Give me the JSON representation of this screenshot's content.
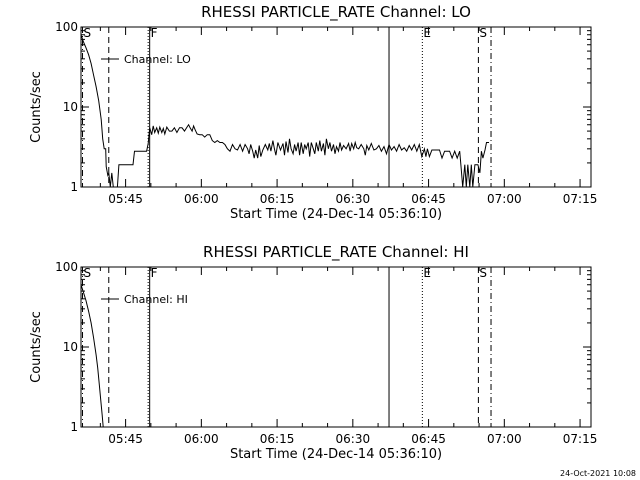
{
  "page": {
    "footer_date": "24-Oct-2021 10:08"
  },
  "chart_data": [
    {
      "type": "line",
      "title": "RHESSI PARTICLE_RATE Channel: LO",
      "xlabel": "Start Time (24-Dec-14 05:36:10)",
      "ylabel": "Counts/sec",
      "y_scale": "log",
      "ylim": [
        1,
        100
      ],
      "y_ticks": [
        {
          "value": 1,
          "label": "1"
        },
        {
          "value": 10,
          "label": "10"
        },
        {
          "value": 100,
          "label": "100"
        }
      ],
      "xlim_minutes": [
        0,
        101
      ],
      "x_ticks": [
        {
          "minute": 8.833,
          "label": "05:45"
        },
        {
          "minute": 23.833,
          "label": "06:00"
        },
        {
          "minute": 38.833,
          "label": "06:15"
        },
        {
          "minute": 53.833,
          "label": "06:30"
        },
        {
          "minute": 68.833,
          "label": "06:45"
        },
        {
          "minute": 83.833,
          "label": "07:00"
        },
        {
          "minute": 98.833,
          "label": "07:15"
        }
      ],
      "legend": {
        "label": "Channel: LO",
        "position": "top-left"
      },
      "markers": [
        {
          "letter": "S",
          "minute": 0.3,
          "style": "dash-dot"
        },
        {
          "letter": "",
          "minute": 5.5,
          "style": "dashed"
        },
        {
          "letter": "",
          "minute": 13.3,
          "style": "dotted"
        },
        {
          "letter": "F",
          "minute": 13.6,
          "style": "solid"
        },
        {
          "letter": "",
          "minute": 61.0,
          "style": "solid"
        },
        {
          "letter": "E",
          "minute": 67.6,
          "style": "dotted"
        },
        {
          "letter": "S",
          "minute": 78.7,
          "style": "dashed"
        },
        {
          "letter": "",
          "minute": 81.2,
          "style": "dash-dot"
        }
      ],
      "series": [
        {
          "name": "Channel: LO",
          "points": [
            [
              0.0,
              80
            ],
            [
              0.5,
              65
            ],
            [
              1.0,
              55
            ],
            [
              1.5,
              45
            ],
            [
              2.0,
              35
            ],
            [
              2.5,
              25
            ],
            [
              3.0,
              18
            ],
            [
              3.5,
              12
            ],
            [
              4.0,
              7
            ],
            [
              4.3,
              4
            ],
            [
              4.6,
              3
            ],
            [
              4.9,
              3
            ],
            [
              5.0,
              1.8
            ],
            [
              5.3,
              1.4
            ],
            [
              5.5,
              1.5
            ],
            [
              5.8,
              1.0
            ],
            [
              6.1,
              1.5
            ],
            [
              6.4,
              1.0
            ],
            [
              7.2,
              1.0
            ],
            [
              7.5,
              1.9
            ],
            [
              8.0,
              1.9
            ],
            [
              10.3,
              1.9
            ],
            [
              10.6,
              2.8
            ],
            [
              13.0,
              2.8
            ],
            [
              13.3,
              3.5
            ],
            [
              13.6,
              5.5
            ],
            [
              14.0,
              4.5
            ],
            [
              14.3,
              5.8
            ],
            [
              14.6,
              4.8
            ],
            [
              15.0,
              5.5
            ],
            [
              15.3,
              4.7
            ],
            [
              15.6,
              5.6
            ],
            [
              16.0,
              4.8
            ],
            [
              16.3,
              5.4
            ],
            [
              16.6,
              4.6
            ],
            [
              17.0,
              5.6
            ],
            [
              17.5,
              5.0
            ],
            [
              18.0,
              5.0
            ],
            [
              18.5,
              5.5
            ],
            [
              19.0,
              4.8
            ],
            [
              19.5,
              5.5
            ],
            [
              20.0,
              5.5
            ],
            [
              20.5,
              5.0
            ],
            [
              21.0,
              5.6
            ],
            [
              21.3,
              6.0
            ],
            [
              21.6,
              5.5
            ],
            [
              22.0,
              5.0
            ],
            [
              22.3,
              5.8
            ],
            [
              22.6,
              5.2
            ],
            [
              23.0,
              4.6
            ],
            [
              23.5,
              4.5
            ],
            [
              24.0,
              4.5
            ],
            [
              24.5,
              4.2
            ],
            [
              25.0,
              4.5
            ],
            [
              25.5,
              4.5
            ],
            [
              26.0,
              3.8
            ],
            [
              26.5,
              3.6
            ],
            [
              27.0,
              3.8
            ],
            [
              27.5,
              3.6
            ],
            [
              28.0,
              3.6
            ],
            [
              28.5,
              3.4
            ],
            [
              29.0,
              3.0
            ],
            [
              29.5,
              2.8
            ],
            [
              30.0,
              3.4
            ],
            [
              30.5,
              3.0
            ],
            [
              31.0,
              2.9
            ],
            [
              31.5,
              3.4
            ],
            [
              32.0,
              2.8
            ],
            [
              32.5,
              3.4
            ],
            [
              33.0,
              3.0
            ],
            [
              33.3,
              2.6
            ],
            [
              33.6,
              3.4
            ],
            [
              34.0,
              2.8
            ],
            [
              34.3,
              2.3
            ],
            [
              34.6,
              2.9
            ],
            [
              35.0,
              2.3
            ],
            [
              35.3,
              3.3
            ],
            [
              35.6,
              2.4
            ],
            [
              36.0,
              2.9
            ],
            [
              36.5,
              3.4
            ],
            [
              37.0,
              2.9
            ],
            [
              37.3,
              3.5
            ],
            [
              37.6,
              2.8
            ],
            [
              38.0,
              3.8
            ],
            [
              38.3,
              3.0
            ],
            [
              38.6,
              2.5
            ],
            [
              39.0,
              3.6
            ],
            [
              39.5,
              2.9
            ],
            [
              40.0,
              3.5
            ],
            [
              40.3,
              2.5
            ],
            [
              40.6,
              3.7
            ],
            [
              41.0,
              2.7
            ],
            [
              41.3,
              4.0
            ],
            [
              41.6,
              3.0
            ],
            [
              42.0,
              2.6
            ],
            [
              42.3,
              3.4
            ],
            [
              42.6,
              2.8
            ],
            [
              43.0,
              3.6
            ],
            [
              43.3,
              2.5
            ],
            [
              43.6,
              3.6
            ],
            [
              44.0,
              2.6
            ],
            [
              44.3,
              3.4
            ],
            [
              44.6,
              3.0
            ],
            [
              45.0,
              3.6
            ],
            [
              45.3,
              2.4
            ],
            [
              45.6,
              3.6
            ],
            [
              46.0,
              3.0
            ],
            [
              46.3,
              2.6
            ],
            [
              46.6,
              3.6
            ],
            [
              47.0,
              2.8
            ],
            [
              47.3,
              3.8
            ],
            [
              47.6,
              2.8
            ],
            [
              48.0,
              3.5
            ],
            [
              48.3,
              2.5
            ],
            [
              48.6,
              4.0
            ],
            [
              49.0,
              3.0
            ],
            [
              49.3,
              3.6
            ],
            [
              49.6,
              2.8
            ],
            [
              50.0,
              3.4
            ],
            [
              50.3,
              2.6
            ],
            [
              50.6,
              3.2
            ],
            [
              51.0,
              2.8
            ],
            [
              51.3,
              3.6
            ],
            [
              51.6,
              2.9
            ],
            [
              52.0,
              3.3
            ],
            [
              52.5,
              3.0
            ],
            [
              53.0,
              3.5
            ],
            [
              53.3,
              2.8
            ],
            [
              53.6,
              3.5
            ],
            [
              54.0,
              3.0
            ],
            [
              54.3,
              3.6
            ],
            [
              54.6,
              3.1
            ],
            [
              55.0,
              3.0
            ],
            [
              55.5,
              3.4
            ],
            [
              56.0,
              3.0
            ],
            [
              56.3,
              2.5
            ],
            [
              56.6,
              3.3
            ],
            [
              57.0,
              2.9
            ],
            [
              57.5,
              3.5
            ],
            [
              58.0,
              2.9
            ],
            [
              58.5,
              3.0
            ],
            [
              59.0,
              3.3
            ],
            [
              59.5,
              2.8
            ],
            [
              60.0,
              3.2
            ],
            [
              60.5,
              2.6
            ],
            [
              61.0,
              3.4
            ],
            [
              61.5,
              2.9
            ],
            [
              62.0,
              3.2
            ],
            [
              62.5,
              2.8
            ],
            [
              63.0,
              3.4
            ],
            [
              63.5,
              2.9
            ],
            [
              64.0,
              3.1
            ],
            [
              64.5,
              2.8
            ],
            [
              65.0,
              3.3
            ],
            [
              65.5,
              2.9
            ],
            [
              66.0,
              3.4
            ],
            [
              66.5,
              2.8
            ],
            [
              67.0,
              3.4
            ],
            [
              67.5,
              2.4
            ],
            [
              68.0,
              3.0
            ],
            [
              68.3,
              2.4
            ],
            [
              68.6,
              3.0
            ],
            [
              69.0,
              2.4
            ],
            [
              69.5,
              2.9
            ],
            [
              70.0,
              2.9
            ],
            [
              71.0,
              2.9
            ],
            [
              71.5,
              2.3
            ],
            [
              72.0,
              2.8
            ],
            [
              73.0,
              2.8
            ],
            [
              73.5,
              2.3
            ],
            [
              74.0,
              2.8
            ],
            [
              74.5,
              2.3
            ],
            [
              75.0,
              2.8
            ],
            [
              75.3,
              1.7
            ],
            [
              75.6,
              1.0
            ],
            [
              76.0,
              1.9
            ],
            [
              76.3,
              1.0
            ],
            [
              76.6,
              1.9
            ],
            [
              77.0,
              1.0
            ],
            [
              77.3,
              1.9
            ],
            [
              77.6,
              1.0
            ],
            [
              78.0,
              1.9
            ],
            [
              78.6,
              1.9
            ],
            [
              79.0,
              1.5
            ],
            [
              79.3,
              2.8
            ],
            [
              79.6,
              2.3
            ],
            [
              80.0,
              2.9
            ],
            [
              80.3,
              3.6
            ],
            [
              80.8,
              3.6
            ]
          ]
        }
      ]
    },
    {
      "type": "line",
      "title": "RHESSI PARTICLE_RATE Channel: HI",
      "xlabel": "Start Time (24-Dec-14 05:36:10)",
      "ylabel": "Counts/sec",
      "y_scale": "log",
      "ylim": [
        1,
        100
      ],
      "y_ticks": [
        {
          "value": 1,
          "label": "1"
        },
        {
          "value": 10,
          "label": "10"
        },
        {
          "value": 100,
          "label": "100"
        }
      ],
      "xlim_minutes": [
        0,
        101
      ],
      "x_ticks": [
        {
          "minute": 8.833,
          "label": "05:45"
        },
        {
          "minute": 23.833,
          "label": "06:00"
        },
        {
          "minute": 38.833,
          "label": "06:15"
        },
        {
          "minute": 53.833,
          "label": "06:30"
        },
        {
          "minute": 68.833,
          "label": "06:45"
        },
        {
          "minute": 83.833,
          "label": "07:00"
        },
        {
          "minute": 98.833,
          "label": "07:15"
        }
      ],
      "legend": {
        "label": "Channel: HI",
        "position": "top-left"
      },
      "markers": [
        {
          "letter": "S",
          "minute": 0.3,
          "style": "dash-dot"
        },
        {
          "letter": "",
          "minute": 5.5,
          "style": "dashed"
        },
        {
          "letter": "",
          "minute": 13.3,
          "style": "dotted"
        },
        {
          "letter": "F",
          "minute": 13.6,
          "style": "solid"
        },
        {
          "letter": "",
          "minute": 61.0,
          "style": "solid"
        },
        {
          "letter": "E",
          "minute": 67.6,
          "style": "dotted"
        },
        {
          "letter": "S",
          "minute": 78.7,
          "style": "dashed"
        },
        {
          "letter": "",
          "minute": 81.2,
          "style": "dash-dot"
        }
      ],
      "series": [
        {
          "name": "Channel: HI",
          "points": [
            [
              0.0,
              60
            ],
            [
              0.5,
              48
            ],
            [
              1.0,
              38
            ],
            [
              1.5,
              28
            ],
            [
              2.0,
              20
            ],
            [
              2.5,
              13
            ],
            [
              3.0,
              8
            ],
            [
              3.3,
              5.5
            ],
            [
              3.6,
              3.5
            ],
            [
              3.9,
              2.2
            ],
            [
              4.2,
              1.4
            ],
            [
              4.4,
              1.0
            ]
          ]
        }
      ]
    }
  ]
}
